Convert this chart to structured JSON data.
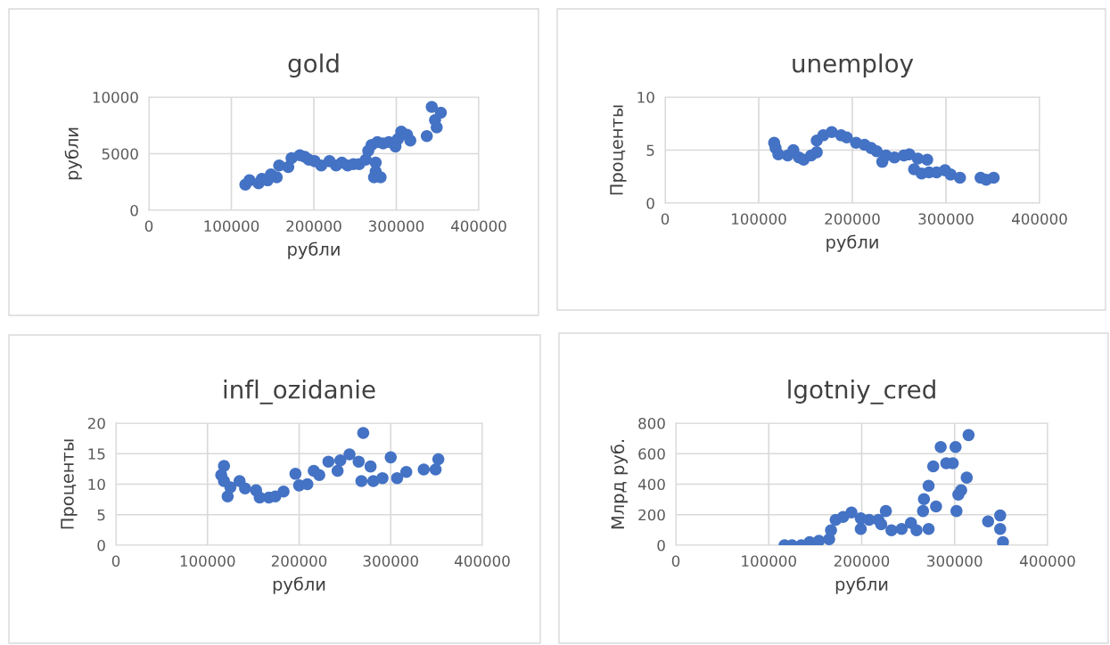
{
  "chart_data": [
    {
      "type": "scatter",
      "title": "gold",
      "xlabel": "рубли",
      "ylabel": "рубли",
      "xlim": [
        0,
        400000
      ],
      "xticks": [
        0,
        100000,
        200000,
        300000,
        400000
      ],
      "ylim": [
        0,
        10000
      ],
      "yticks": [
        0,
        5000,
        10000
      ],
      "grid": true,
      "marker": "circle",
      "series": [
        {
          "color": "#4472c4",
          "x": [
            117000,
            122000,
            133000,
            137000,
            144000,
            148000,
            155000,
            158000,
            169000,
            173000,
            183000,
            189000,
            194000,
            201000,
            209000,
            219000,
            227000,
            234000,
            241000,
            248000,
            255000,
            263000,
            266000,
            270000,
            277000,
            275000,
            275000,
            273000,
            281000,
            284000,
            291000,
            299000,
            302000,
            306000,
            313000,
            317000,
            337000,
            349000,
            347000,
            354000,
            343000
          ],
          "values": [
            2260,
            2650,
            2390,
            2780,
            2650,
            3170,
            2910,
            3950,
            3820,
            4600,
            4860,
            4730,
            4470,
            4340,
            3950,
            4340,
            3950,
            4210,
            3950,
            4080,
            4080,
            4470,
            5250,
            5770,
            6030,
            4210,
            3430,
            2910,
            2910,
            5900,
            6030,
            5640,
            6290,
            6940,
            6680,
            6160,
            6550,
            7320,
            7970,
            8620,
            9140
          ]
        }
      ]
    },
    {
      "type": "scatter",
      "title": "unemploy",
      "xlabel": "рубли",
      "ylabel": "Проценты",
      "xlim": [
        0,
        400000
      ],
      "xticks": [
        0,
        100000,
        200000,
        300000,
        400000
      ],
      "ylim": [
        0,
        10
      ],
      "yticks": [
        0,
        5,
        10
      ],
      "grid": true,
      "marker": "circle",
      "series": [
        {
          "color": "#4472c4",
          "x": [
            116500,
            118000,
            121000,
            131000,
            137000,
            143000,
            148000,
            156000,
            162000,
            162000,
            169000,
            178000,
            188000,
            194000,
            204000,
            213000,
            220000,
            226000,
            232000,
            236000,
            245000,
            255000,
            261000,
            266000,
            270000,
            274000,
            280000,
            282000,
            290000,
            299000,
            305000,
            315000,
            337000,
            343000,
            351000
          ],
          "values": [
            5.7,
            5.2,
            4.6,
            4.5,
            5.0,
            4.3,
            4.1,
            4.5,
            4.8,
            5.9,
            6.4,
            6.7,
            6.4,
            6.2,
            5.7,
            5.5,
            5.2,
            4.9,
            3.9,
            4.5,
            4.3,
            4.5,
            4.6,
            3.2,
            4.2,
            2.8,
            4.1,
            2.9,
            2.9,
            3.1,
            2.7,
            2.4,
            2.4,
            2.2,
            2.4
          ]
        }
      ]
    },
    {
      "type": "scatter",
      "title": "infl_ozidanie",
      "xlabel": "рубли",
      "ylabel": "Проценты",
      "xlim": [
        0,
        400000
      ],
      "xticks": [
        0,
        100000,
        200000,
        300000,
        400000
      ],
      "ylim": [
        0,
        20
      ],
      "yticks": [
        0,
        5,
        10,
        15,
        20
      ],
      "grid": true,
      "marker": "circle",
      "series": [
        {
          "color": "#4472c4",
          "x": [
            118000,
            115000,
            118000,
            122000,
            125000,
            135000,
            141000,
            153000,
            157000,
            167000,
            174000,
            183000,
            196000,
            200000,
            209000,
            216000,
            222000,
            232000,
            242000,
            245000,
            255000,
            265000,
            268000,
            270000,
            278000,
            281000,
            291000,
            300000,
            307000,
            317000,
            336000,
            352000,
            349000
          ],
          "values": [
            13.0,
            11.5,
            10.5,
            8.0,
            9.5,
            10.5,
            9.3,
            9.0,
            7.8,
            7.8,
            8.0,
            8.8,
            11.7,
            9.8,
            10.0,
            12.2,
            11.5,
            13.7,
            12.2,
            13.9,
            14.9,
            13.7,
            10.5,
            18.4,
            12.9,
            10.5,
            11.0,
            14.4,
            11.0,
            12.0,
            12.4,
            14.1,
            12.4
          ]
        }
      ]
    },
    {
      "type": "scatter",
      "title": "lgotniy_cred",
      "xlabel": "рубли",
      "ylabel": "Млрд руб.",
      "xlim": [
        0,
        400000
      ],
      "xticks": [
        0,
        100000,
        200000,
        300000,
        400000
      ],
      "ylim": [
        0,
        800
      ],
      "yticks": [
        0,
        200,
        400,
        600,
        800
      ],
      "grid": true,
      "marker": "circle",
      "series": [
        {
          "color": "#4472c4",
          "x": [
            117000,
            125000,
            135000,
            144000,
            154000,
            165000,
            167000,
            172000,
            180000,
            189000,
            199000,
            199000,
            208000,
            218000,
            221000,
            226000,
            232000,
            243000,
            253000,
            259000,
            266000,
            267000,
            272000,
            272000,
            277000,
            280000,
            285000,
            291000,
            298000,
            301000,
            302000,
            304000,
            307000,
            313000,
            315000,
            336000,
            349000,
            349000,
            352000
          ],
          "values": [
            0,
            0,
            0,
            20,
            29,
            39,
            98,
            166,
            185,
            215,
            107,
            176,
            166,
            166,
            137,
            224,
            98,
            107,
            146,
            98,
            224,
            302,
            390,
            107,
            517,
            254,
            644,
            537,
            537,
            644,
            224,
            332,
            361,
            443,
            722,
            156,
            195,
            107,
            20
          ]
        }
      ]
    }
  ]
}
